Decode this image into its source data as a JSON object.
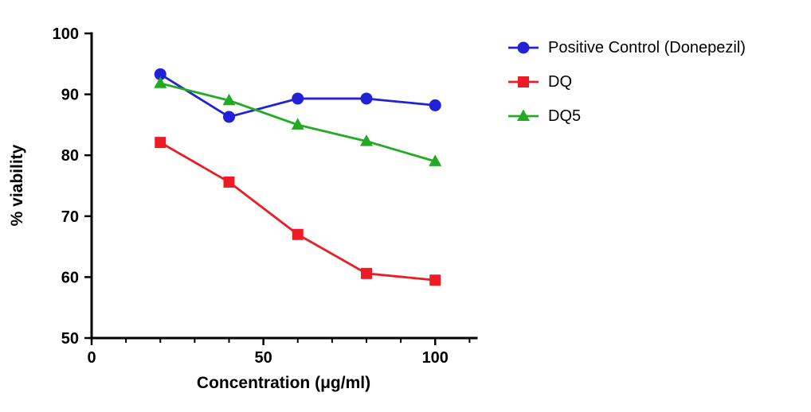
{
  "chart_data": {
    "type": "line",
    "title": "",
    "xlabel": "Concentration (μg/ml)",
    "ylabel": "% viability",
    "x": [
      20,
      40,
      60,
      80,
      100
    ],
    "series": [
      {
        "name": "Positive Control (Donepezil)",
        "marker": "circle",
        "color": "#2121d6",
        "values": [
          93.3,
          86.3,
          89.3,
          89.3,
          88.2
        ]
      },
      {
        "name": "DQ",
        "marker": "square",
        "color": "#ed1c24",
        "values": [
          82.1,
          75.6,
          67.0,
          60.6,
          59.5
        ]
      },
      {
        "name": "DQ5",
        "marker": "triangle",
        "color": "#22aa22",
        "values": [
          91.8,
          89.0,
          85.0,
          82.3,
          79.0
        ]
      }
    ],
    "xlim": [
      0,
      112
    ],
    "ylim": [
      50,
      100
    ],
    "xticks": [
      0,
      50,
      100
    ],
    "xminor_step": 10,
    "yticks": [
      50,
      60,
      70,
      80,
      90,
      100
    ],
    "grid": false,
    "legend_position": "top-right"
  }
}
